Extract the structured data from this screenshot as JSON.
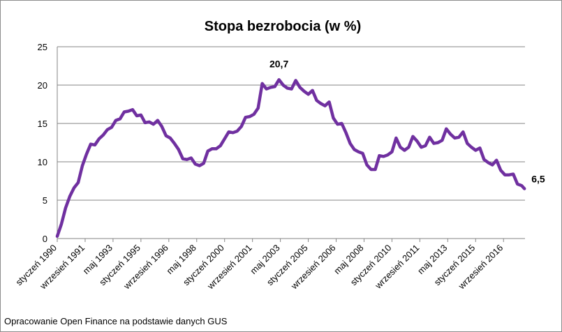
{
  "chart_data": {
    "type": "line",
    "title": "Stopa bezrobocia (w %)",
    "xlabel": "",
    "ylabel": "",
    "ylim": [
      0,
      25
    ],
    "yticks": [
      "0",
      "5",
      "10",
      "15",
      "20",
      "25"
    ],
    "grid": true,
    "legend": "none",
    "line_color": "#7030a0",
    "xticks": [
      {
        "label": "styczeń 1990",
        "date": "1990-01"
      },
      {
        "label": "wrzesień 1991",
        "date": "1991-09"
      },
      {
        "label": "maj 1993",
        "date": "1993-05"
      },
      {
        "label": "styczeń 1995",
        "date": "1995-01"
      },
      {
        "label": "wrzesień 1996",
        "date": "1996-09"
      },
      {
        "label": "maj 1998",
        "date": "1998-05"
      },
      {
        "label": "styczeń 2000",
        "date": "2000-01"
      },
      {
        "label": "wrzesień 2001",
        "date": "2001-09"
      },
      {
        "label": "maj 2003",
        "date": "2003-05"
      },
      {
        "label": "styczeń 2005",
        "date": "2005-01"
      },
      {
        "label": "wrzesień 2006",
        "date": "2006-09"
      },
      {
        "label": "maj 2008",
        "date": "2008-05"
      },
      {
        "label": "styczeń 2010",
        "date": "2010-01"
      },
      {
        "label": "wrzesień 2011",
        "date": "2011-09"
      },
      {
        "label": "maj 2013",
        "date": "2013-05"
      },
      {
        "label": "styczeń 2015",
        "date": "2015-01"
      },
      {
        "label": "wrzesień 2016",
        "date": "2016-09"
      }
    ],
    "points": [
      {
        "x": "1990-01",
        "y": 0.3
      },
      {
        "x": "1990-04",
        "y": 1.9
      },
      {
        "x": "1990-07",
        "y": 4.0
      },
      {
        "x": "1990-10",
        "y": 5.5
      },
      {
        "x": "1991-01",
        "y": 6.6
      },
      {
        "x": "1991-04",
        "y": 7.3
      },
      {
        "x": "1991-07",
        "y": 9.5
      },
      {
        "x": "1991-10",
        "y": 11.0
      },
      {
        "x": "1992-01",
        "y": 12.3
      },
      {
        "x": "1992-04",
        "y": 12.2
      },
      {
        "x": "1992-07",
        "y": 13.0
      },
      {
        "x": "1992-10",
        "y": 13.5
      },
      {
        "x": "1993-01",
        "y": 14.2
      },
      {
        "x": "1993-04",
        "y": 14.5
      },
      {
        "x": "1993-07",
        "y": 15.4
      },
      {
        "x": "1993-10",
        "y": 15.6
      },
      {
        "x": "1994-01",
        "y": 16.5
      },
      {
        "x": "1994-04",
        "y": 16.6
      },
      {
        "x": "1994-07",
        "y": 16.8
      },
      {
        "x": "1994-10",
        "y": 16.0
      },
      {
        "x": "1995-01",
        "y": 16.1
      },
      {
        "x": "1995-04",
        "y": 15.1
      },
      {
        "x": "1995-07",
        "y": 15.2
      },
      {
        "x": "1995-10",
        "y": 14.9
      },
      {
        "x": "1996-01",
        "y": 15.4
      },
      {
        "x": "1996-04",
        "y": 14.6
      },
      {
        "x": "1996-07",
        "y": 13.4
      },
      {
        "x": "1996-10",
        "y": 13.1
      },
      {
        "x": "1997-01",
        "y": 12.4
      },
      {
        "x": "1997-04",
        "y": 11.6
      },
      {
        "x": "1997-07",
        "y": 10.4
      },
      {
        "x": "1997-10",
        "y": 10.3
      },
      {
        "x": "1998-01",
        "y": 10.5
      },
      {
        "x": "1998-04",
        "y": 9.7
      },
      {
        "x": "1998-07",
        "y": 9.5
      },
      {
        "x": "1998-10",
        "y": 9.8
      },
      {
        "x": "1999-01",
        "y": 11.4
      },
      {
        "x": "1999-04",
        "y": 11.7
      },
      {
        "x": "1999-07",
        "y": 11.7
      },
      {
        "x": "1999-10",
        "y": 12.1
      },
      {
        "x": "2000-01",
        "y": 13.0
      },
      {
        "x": "2000-04",
        "y": 13.9
      },
      {
        "x": "2000-07",
        "y": 13.8
      },
      {
        "x": "2000-10",
        "y": 14.0
      },
      {
        "x": "2001-01",
        "y": 14.6
      },
      {
        "x": "2001-04",
        "y": 15.8
      },
      {
        "x": "2001-07",
        "y": 15.9
      },
      {
        "x": "2001-10",
        "y": 16.2
      },
      {
        "x": "2002-01",
        "y": 17.0
      },
      {
        "x": "2002-04",
        "y": 20.2
      },
      {
        "x": "2002-07",
        "y": 19.5
      },
      {
        "x": "2002-10",
        "y": 19.7
      },
      {
        "x": "2003-01",
        "y": 19.8
      },
      {
        "x": "2003-04",
        "y": 20.7
      },
      {
        "x": "2003-07",
        "y": 20.0
      },
      {
        "x": "2003-10",
        "y": 19.6
      },
      {
        "x": "2004-01",
        "y": 19.5
      },
      {
        "x": "2004-04",
        "y": 20.6
      },
      {
        "x": "2004-07",
        "y": 19.7
      },
      {
        "x": "2004-10",
        "y": 19.2
      },
      {
        "x": "2005-01",
        "y": 18.8
      },
      {
        "x": "2005-04",
        "y": 19.3
      },
      {
        "x": "2005-07",
        "y": 18.0
      },
      {
        "x": "2005-10",
        "y": 17.6
      },
      {
        "x": "2006-01",
        "y": 17.3
      },
      {
        "x": "2006-04",
        "y": 17.8
      },
      {
        "x": "2006-07",
        "y": 15.7
      },
      {
        "x": "2006-10",
        "y": 14.9
      },
      {
        "x": "2007-01",
        "y": 15.0
      },
      {
        "x": "2007-04",
        "y": 13.8
      },
      {
        "x": "2007-07",
        "y": 12.4
      },
      {
        "x": "2007-10",
        "y": 11.6
      },
      {
        "x": "2008-01",
        "y": 11.3
      },
      {
        "x": "2008-04",
        "y": 11.1
      },
      {
        "x": "2008-07",
        "y": 9.6
      },
      {
        "x": "2008-10",
        "y": 9.0
      },
      {
        "x": "2009-01",
        "y": 9.0
      },
      {
        "x": "2009-04",
        "y": 10.8
      },
      {
        "x": "2009-07",
        "y": 10.7
      },
      {
        "x": "2009-10",
        "y": 10.9
      },
      {
        "x": "2010-01",
        "y": 11.3
      },
      {
        "x": "2010-04",
        "y": 13.1
      },
      {
        "x": "2010-07",
        "y": 11.9
      },
      {
        "x": "2010-10",
        "y": 11.5
      },
      {
        "x": "2011-01",
        "y": 11.9
      },
      {
        "x": "2011-04",
        "y": 13.3
      },
      {
        "x": "2011-07",
        "y": 12.7
      },
      {
        "x": "2011-10",
        "y": 11.9
      },
      {
        "x": "2012-01",
        "y": 12.1
      },
      {
        "x": "2012-04",
        "y": 13.2
      },
      {
        "x": "2012-07",
        "y": 12.4
      },
      {
        "x": "2012-10",
        "y": 12.5
      },
      {
        "x": "2013-01",
        "y": 12.8
      },
      {
        "x": "2013-04",
        "y": 14.3
      },
      {
        "x": "2013-07",
        "y": 13.6
      },
      {
        "x": "2013-10",
        "y": 13.1
      },
      {
        "x": "2014-01",
        "y": 13.2
      },
      {
        "x": "2014-04",
        "y": 13.9
      },
      {
        "x": "2014-07",
        "y": 12.4
      },
      {
        "x": "2014-10",
        "y": 11.9
      },
      {
        "x": "2015-01",
        "y": 11.5
      },
      {
        "x": "2015-04",
        "y": 11.8
      },
      {
        "x": "2015-07",
        "y": 10.3
      },
      {
        "x": "2015-10",
        "y": 9.9
      },
      {
        "x": "2016-01",
        "y": 9.6
      },
      {
        "x": "2016-04",
        "y": 10.2
      },
      {
        "x": "2016-07",
        "y": 8.9
      },
      {
        "x": "2016-10",
        "y": 8.3
      },
      {
        "x": "2017-01",
        "y": 8.3
      },
      {
        "x": "2017-04",
        "y": 8.4
      },
      {
        "x": "2017-07",
        "y": 7.1
      },
      {
        "x": "2017-10",
        "y": 6.9
      },
      {
        "x": "2017-12",
        "y": 6.5
      }
    ],
    "annotations": [
      {
        "text": "20,7",
        "x": "2003-04",
        "y": 20.7
      },
      {
        "text": "6,5",
        "x": "2017-12",
        "y": 6.5
      }
    ]
  },
  "source_note": "Opracowanie Open Finance na podstawie danych GUS"
}
